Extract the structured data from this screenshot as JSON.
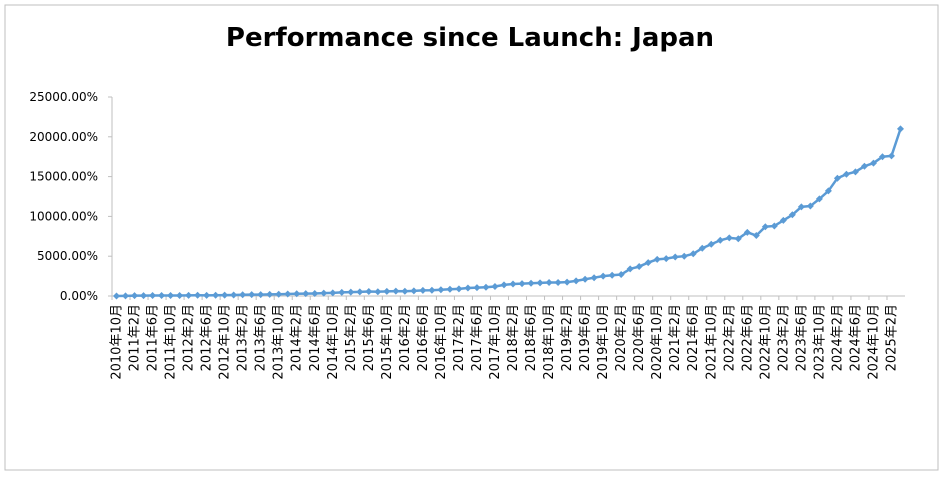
{
  "chart_data": {
    "type": "line",
    "title": "Performance since Launch: Japan",
    "categories": [
      "2010年10月",
      null,
      "2011年2月",
      null,
      "2011年6月",
      null,
      "2011年10月",
      null,
      "2012年2月",
      null,
      "2012年6月",
      null,
      "2012年10月",
      null,
      "2013年2月",
      null,
      "2013年6月",
      null,
      "2013年10月",
      null,
      "2014年2月",
      null,
      "2014年6月",
      null,
      "2014年10月",
      null,
      "2015年2月",
      null,
      "2015年6月",
      null,
      "2015年10月",
      null,
      "2016年2月",
      null,
      "2016年6月",
      null,
      "2016年10月",
      null,
      "2017年2月",
      null,
      "2017年6月",
      null,
      "2017年10月",
      null,
      "2018年2月",
      null,
      "2018年6月",
      null,
      "2018年10月",
      null,
      "2019年2月",
      null,
      "2019年6月",
      null,
      "2019年10月",
      null,
      "2020年2月",
      null,
      "2020年6月",
      null,
      "2020年10月",
      null,
      "2021年2月",
      null,
      "2021年6月",
      null,
      "2021年10月",
      null,
      "2022年2月",
      null,
      "2022年6月",
      null,
      "2022年10月",
      null,
      "2023年2月",
      null,
      "2023年6月",
      null,
      "2023年10月",
      null,
      "2024年2月",
      null,
      "2024年6月",
      null,
      "2024年10月",
      null,
      "2025年2月",
      null
    ],
    "values": [
      0,
      20,
      40,
      50,
      60,
      70,
      60,
      70,
      80,
      90,
      80,
      100,
      110,
      130,
      150,
      180,
      170,
      200,
      220,
      250,
      280,
      300,
      320,
      360,
      400,
      450,
      480,
      520,
      560,
      540,
      580,
      620,
      600,
      650,
      700,
      720,
      780,
      850,
      900,
      1000,
      1050,
      1100,
      1200,
      1400,
      1500,
      1550,
      1600,
      1650,
      1700,
      1700,
      1750,
      1900,
      2100,
      2300,
      2500,
      2600,
      2700,
      3400,
      3700,
      4200,
      4600,
      4700,
      4900,
      5000,
      5300,
      6000,
      6500,
      7000,
      7300,
      7200,
      8000,
      7600,
      8700,
      8800,
      9500,
      10200,
      11200,
      11300,
      12200,
      13200,
      14800,
      15300,
      15600,
      16300,
      16700,
      17500,
      17600,
      21000
    ],
    "color": "#5b9bd5",
    "ylim": [
      0,
      25000
    ],
    "yticks": [
      {
        "value": 0,
        "label": "0.00%"
      },
      {
        "value": 5000,
        "label": "5000.00%"
      },
      {
        "value": 10000,
        "label": "10000.00%"
      },
      {
        "value": 15000,
        "label": "15000.00%"
      },
      {
        "value": 20000,
        "label": "20000.00%"
      },
      {
        "value": 25000,
        "label": "25000.00%"
      }
    ]
  }
}
